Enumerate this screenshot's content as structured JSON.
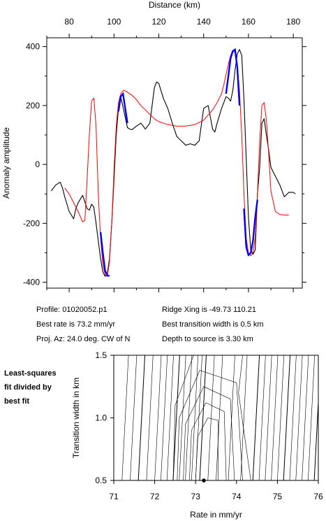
{
  "chart_data": [
    {
      "type": "line",
      "xlabel": "Distance (km)",
      "ylabel": "Anomaly amplitude",
      "xlim": [
        70,
        184
      ],
      "ylim": [
        -420,
        430
      ],
      "x_ticks": [
        80,
        100,
        120,
        140,
        160,
        180
      ],
      "y_ticks": [
        -400,
        -200,
        0,
        200,
        400
      ],
      "x_axis_position": "top",
      "grid": false,
      "series": [
        {
          "role": "observed",
          "color": "#000000",
          "x": [
            72,
            74,
            76,
            77,
            78,
            80,
            82,
            83,
            84,
            86,
            88,
            89,
            90,
            91,
            92,
            93,
            94,
            95,
            96,
            97,
            98,
            99,
            100,
            101,
            102,
            103,
            104,
            105,
            106,
            107,
            108,
            110,
            112,
            114,
            116,
            118,
            119,
            120,
            121,
            122,
            124,
            126,
            128,
            130,
            132,
            134,
            136,
            138,
            140,
            142,
            143,
            144,
            145,
            146,
            148,
            150,
            151,
            152,
            153,
            154,
            155,
            156,
            157,
            158,
            159,
            160,
            161,
            162,
            163,
            164,
            165,
            166,
            167,
            168,
            169,
            170,
            172,
            174,
            176,
            178,
            180,
            181
          ],
          "y": [
            -90,
            -70,
            -60,
            -80,
            -110,
            -160,
            -185,
            -150,
            -130,
            -105,
            -150,
            -155,
            -135,
            -145,
            -200,
            -260,
            -320,
            -365,
            -380,
            -370,
            -320,
            -200,
            -50,
            100,
            190,
            230,
            195,
            160,
            125,
            120,
            118,
            130,
            140,
            120,
            140,
            260,
            280,
            275,
            250,
            225,
            190,
            140,
            95,
            80,
            65,
            70,
            65,
            80,
            190,
            200,
            160,
            120,
            110,
            140,
            190,
            230,
            225,
            215,
            250,
            320,
            375,
            390,
            370,
            220,
            20,
            -180,
            -290,
            -305,
            -290,
            -100,
            -10,
            140,
            155,
            100,
            50,
            -10,
            -40,
            -70,
            -110,
            -95,
            -95,
            -100
          ]
        },
        {
          "role": "best-fit model",
          "color": "#ff0000",
          "x": [
            78,
            80,
            82,
            84,
            86,
            87,
            88,
            89,
            90,
            91,
            92,
            93,
            94,
            95,
            96,
            97,
            98,
            99,
            100,
            101,
            102,
            103,
            104,
            105,
            106,
            108,
            110,
            112,
            114,
            116,
            118,
            120,
            124,
            128,
            132,
            136,
            140,
            144,
            146,
            148,
            149,
            150,
            151,
            152,
            153,
            154,
            155,
            156,
            157,
            158,
            159,
            160,
            161,
            162,
            163,
            164,
            165,
            166,
            167,
            168,
            169,
            170,
            172,
            174,
            176,
            178
          ],
          "y": [
            -80,
            -100,
            -130,
            -160,
            -195,
            -190,
            -50,
            100,
            215,
            225,
            130,
            -100,
            -250,
            -340,
            -375,
            -380,
            -330,
            -200,
            -20,
            130,
            210,
            240,
            250,
            250,
            245,
            235,
            220,
            200,
            185,
            170,
            155,
            145,
            135,
            130,
            130,
            135,
            150,
            185,
            210,
            240,
            270,
            305,
            340,
            370,
            385,
            380,
            340,
            250,
            100,
            -100,
            -250,
            -300,
            -310,
            -300,
            -250,
            -100,
            80,
            200,
            210,
            150,
            40,
            -90,
            -160,
            -170,
            -172,
            -172
          ]
        },
        {
          "role": "fitted segments",
          "color": "#0000ff",
          "segments": [
            {
              "x": [
                94,
                95,
                96,
                97,
                98
              ],
              "y": [
                -230,
                -300,
                -360,
                -378,
                -378
              ]
            },
            {
              "x": [
                102,
                103,
                104,
                105,
                106
              ],
              "y": [
                180,
                230,
                240,
                190,
                140
              ]
            },
            {
              "x": [
                150,
                151,
                152,
                153,
                154,
                155,
                156
              ],
              "y": [
                240,
                300,
                360,
                385,
                390,
                330,
                200
              ]
            },
            {
              "x": [
                158,
                159,
                160,
                161,
                162,
                163,
                164
              ],
              "y": [
                -150,
                -280,
                -308,
                -300,
                -260,
                -180,
                -120
              ]
            }
          ]
        }
      ]
    },
    {
      "type": "contour",
      "xlabel": "Rate in mm/yr",
      "ylabel": "Transition width in km",
      "xlim": [
        71,
        76
      ],
      "ylim": [
        0.5,
        1.5
      ],
      "x_ticks": [
        71,
        72,
        73,
        74,
        75,
        76
      ],
      "y_ticks": [
        0.5,
        1.0,
        1.5
      ],
      "contour_base_rates": [
        71.2,
        71.4,
        71.6,
        71.8,
        72.0,
        72.15,
        72.3,
        72.45,
        72.6,
        72.75,
        72.9,
        73.0,
        73.1,
        73.3,
        73.5,
        73.8,
        74.1,
        74.4,
        74.55,
        74.7,
        74.85,
        75.0,
        75.15,
        75.3,
        75.45,
        75.6,
        75.75,
        75.9
      ],
      "best_fit_point": {
        "rate": 73.2,
        "width": 0.5
      }
    }
  ],
  "info": {
    "profile": "Profile: 01020052.p1",
    "best_rate": "Best rate is 73.2 mm/yr",
    "proj_az": "Proj. Az: 24.0 deg. CW of N",
    "ridge_xing": "Ridge Xing is -49.73 110.21",
    "best_transition": "Best transition width is 0.5 km",
    "depth": "Depth to source is   3.30 km"
  },
  "side_note": [
    "Least-squares",
    "fit divided by",
    "best fit"
  ]
}
